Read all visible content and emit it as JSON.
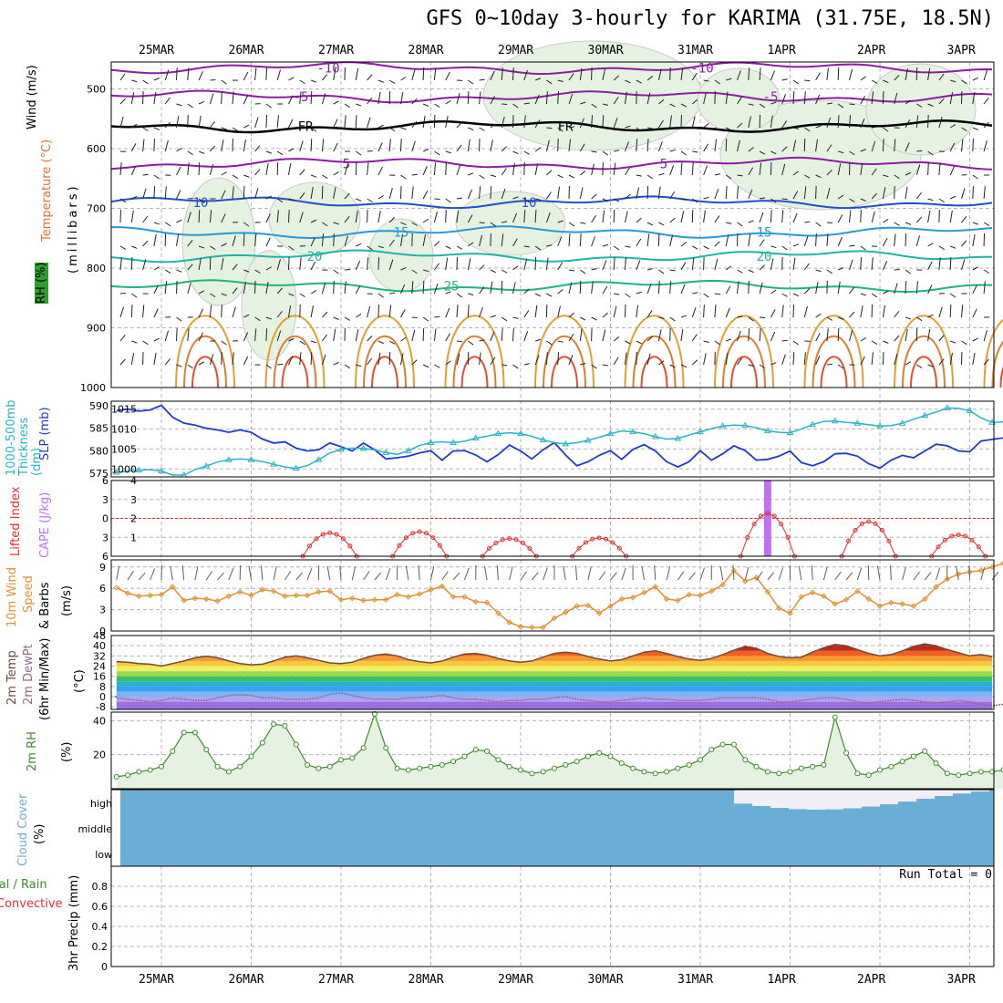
{
  "title": "GFS 0~10day 3-hourly for KARIMA (31.75E, 18.5N)",
  "dates": [
    "25MAR",
    "26MAR",
    "27MAR",
    "28MAR",
    "29MAR",
    "30MAR",
    "31MAR",
    "1APR",
    "2APR",
    "3APR"
  ],
  "run_total": "Run Total = 0",
  "panel_labels": {
    "upper": {
      "wind": "Wind (m/s)",
      "temp": "Temperature (°C)",
      "rh": "RH (%)",
      "units": "(millibars)"
    },
    "slp": {
      "thick": "1000-500mb Thickness (dm)",
      "slp": "SLP (mb)"
    },
    "cape": {
      "li": "Lifted Index",
      "cape": "CAPE (J/kg)"
    },
    "wind10": {
      "a": "10m Wind",
      "b": "Speed",
      "c": "& Barbs",
      "units": "(m/s)"
    },
    "temp2m": {
      "a": "2m Temp",
      "b": "2m DewPt",
      "c": "(6hr Min/Max)",
      "units": "(°C)"
    },
    "rh2m": {
      "a": "2m RH",
      "units": "(%)"
    },
    "cloud": {
      "a": "Cloud Cover",
      "units": "(%)"
    },
    "precip": {
      "a": "Total / Rain",
      "b": "Convective",
      "c": "3hr Precip (mm)"
    }
  },
  "colors": {
    "grid": "#b4b4b4",
    "slp": "#1e3cc8",
    "thickness": "#28b4c8",
    "lifted_index": "#e03030",
    "cape": "#c070f0",
    "wind_speed": "#e09030",
    "temp": "#6e4a40",
    "dewpt": "#9a6a8a",
    "rh": "#3c8c28",
    "cloud": "#6aaed6",
    "rh_fill": "#e6f2e1"
  },
  "chart_data": [
    {
      "type": "contour",
      "panel": "upper-air",
      "ylabel": "millibars",
      "y_ticks": [
        500,
        600,
        700,
        800,
        900,
        1000
      ],
      "ylim": [
        1000,
        455
      ],
      "temperature_isotherms": [
        {
          "label": "-10",
          "level": 465
        },
        {
          "label": "-5",
          "level": 513
        },
        {
          "label": "FR",
          "level": 563
        },
        {
          "label": "5",
          "level": 625
        },
        {
          "label": "10",
          "level": 690
        },
        {
          "label": "15",
          "level": 740
        },
        {
          "label": "20",
          "level": 780
        },
        {
          "label": "25",
          "level": 830
        }
      ],
      "rh_contours": [
        "10",
        "30"
      ]
    },
    {
      "type": "line",
      "panel": "slp-thickness",
      "series": [
        {
          "name": "SLP (mb)",
          "axis": "right",
          "ylim": [
            998,
            1017
          ],
          "values": [
            1014.6,
            1015,
            1014.5,
            1014.8,
            1016,
            1013,
            1011.5,
            1011,
            1010.2,
            1009.8,
            1009.2,
            1009.8,
            1009.2,
            1007.5,
            1006.5,
            1006.8,
            1005.2,
            1004.5,
            1004.8,
            1006.5,
            1005.6,
            1004.5,
            1006.5,
            1004.8,
            1002.5,
            1002.8,
            1003.2,
            1004,
            1004.6,
            1002.2,
            1004.5,
            1004.6,
            1003.5,
            1001.8,
            1003.6,
            1006,
            1004.5,
            1002.5,
            1004.8,
            1006.6,
            1003.5,
            1000.8,
            1001.8,
            1003.4,
            1004.6,
            1002.4,
            1004.9,
            1006.1,
            1004.5,
            1001.8,
            1000.5,
            1001.8,
            1004.6,
            1002.2,
            1003.8,
            1005.8,
            1004.6,
            1002.2,
            1002.4,
            1003.2,
            1004.5,
            1001.6,
            1000.8,
            1001.8,
            1003.8,
            1003.9,
            1003.2,
            1001.3,
            1000.2,
            1002.2,
            1003.4,
            1002.8,
            1004.5,
            1006.2,
            1005.8,
            1004.5,
            1004.3,
            1007,
            1007.4,
            1007.8,
            1009
          ]
        },
        {
          "name": "1000-500mb Thickness (dm)",
          "axis": "left",
          "ylim": [
            574.2,
            591
          ],
          "values": [
            575.2,
            575.5,
            575.7,
            575.8,
            575.5,
            574.6,
            574.6,
            575.8,
            576.6,
            577.5,
            578,
            578.2,
            578,
            577.6,
            577,
            576.4,
            576.1,
            576.7,
            578,
            579.5,
            580.3,
            580.6,
            580.5,
            580.2,
            579.6,
            579.2,
            580,
            581.2,
            581.8,
            582,
            581.8,
            582.1,
            582.8,
            583.2,
            583.8,
            584,
            583.8,
            583.2,
            582.4,
            581.8,
            581.5,
            581.8,
            582.3,
            583,
            583.8,
            584.4,
            584.2,
            583.8,
            583.1,
            582.6,
            582.7,
            583.5,
            584.2,
            584.9,
            585.5,
            585.7,
            585.6,
            585.1,
            584.4,
            584.1,
            584,
            584.8,
            585.8,
            586.5,
            586.6,
            586.3,
            586.1,
            585.8,
            585.5,
            585.6,
            586.1,
            587,
            587.8,
            588.6,
            589.5,
            589.4,
            588.9,
            587.3,
            586.3,
            586.4,
            586.7
          ]
        }
      ]
    },
    {
      "type": "bar+line",
      "panel": "cape-lifted-index",
      "series": [
        {
          "name": "Lifted Index",
          "axis": "left",
          "ylim": [
            -6,
            6
          ],
          "y_ticks": [
            -6,
            -3,
            0,
            3,
            6
          ]
        },
        {
          "name": "CAPE (J/kg)",
          "axis": "right",
          "ylim": [
            0,
            4
          ],
          "y_ticks": [
            1,
            2,
            3,
            4
          ],
          "bars": [
            {
              "x_step": 54,
              "value": 4
            }
          ]
        }
      ],
      "lifted_index_bumps": [
        {
          "center_step": 15,
          "peak": 2.3
        },
        {
          "center_step": 23,
          "peak": 2.1
        },
        {
          "center_step": 31,
          "peak": 3.2
        },
        {
          "center_step": 39,
          "peak": 3.1
        },
        {
          "center_step": 54,
          "peak": -0.8
        },
        {
          "center_step": 63,
          "peak": 0.5
        },
        {
          "center_step": 71,
          "peak": 2.6
        }
      ]
    },
    {
      "type": "line",
      "panel": "10m-wind",
      "ylabel": "(m/s)",
      "ylim": [
        0,
        10
      ],
      "y_ticks": [
        0,
        3,
        6,
        9
      ],
      "series": [
        {
          "name": "10m Wind Speed",
          "values": [
            6.1,
            5.3,
            4.9,
            5.0,
            5.1,
            6.2,
            4.3,
            4.6,
            4.5,
            4.2,
            4.9,
            5.5,
            5.0,
            5.8,
            5.6,
            4.9,
            5.0,
            5.0,
            5.5,
            5.6,
            4.4,
            4.6,
            4.3,
            4.4,
            4.4,
            5.1,
            4.8,
            5.2,
            5.8,
            6.3,
            4.8,
            4.8,
            4.1,
            4.0,
            2.5,
            1.2,
            0.6,
            0.5,
            0.5,
            1.8,
            2.6,
            3.5,
            3.6,
            2.5,
            3.5,
            4.5,
            4.7,
            5.4,
            6.2,
            4.5,
            4.3,
            5.1,
            5.0,
            5.6,
            6.5,
            8.5,
            7.0,
            7.5,
            5.5,
            3.2,
            2.5,
            4.8,
            5.4,
            4.9,
            3.8,
            4.4,
            5.6,
            4.5,
            3.5,
            4.0,
            3.8,
            3.5,
            4.5,
            6.2,
            7.3,
            8.0,
            8.3,
            8.5,
            9.0,
            9.5,
            9.2,
            8.5,
            8.0,
            9.1,
            8.7
          ]
        }
      ]
    },
    {
      "type": "area",
      "panel": "2m-temp",
      "ylabel": "(°C)",
      "ylim": [
        -10,
        48
      ],
      "y_ticks": [
        -8,
        0,
        8,
        16,
        24,
        32,
        40,
        48
      ],
      "series": [
        {
          "name": "2m Temp",
          "values": [
            27.5,
            27,
            26,
            25.5,
            24,
            26,
            28,
            30.5,
            31.8,
            30.5,
            28,
            26,
            25,
            25.5,
            28,
            31,
            32,
            30.5,
            28.5,
            26.5,
            26,
            27,
            30,
            32.5,
            33.5,
            32,
            29,
            27.5,
            26.5,
            28,
            31,
            33.5,
            34,
            32.5,
            30,
            28,
            27,
            28,
            31,
            34,
            35,
            34,
            31.5,
            29.5,
            28,
            29,
            32,
            35,
            36,
            34,
            31.5,
            29.5,
            28.5,
            30,
            33,
            36.5,
            39.5,
            38,
            34,
            31.5,
            30.5,
            31,
            35,
            38.5,
            41,
            40,
            37,
            34,
            32,
            33,
            36,
            39.5,
            41.5,
            40,
            37,
            34.5,
            32,
            33,
            31.5
          ]
        },
        {
          "name": "2m DewPt",
          "values": [
            -1,
            -2,
            -3,
            -4,
            -3,
            -1,
            -2,
            -3,
            -3,
            -1,
            1,
            1.5,
            1,
            -1,
            -1,
            -2,
            -2,
            -2,
            -1,
            2,
            3,
            1,
            -1,
            -2,
            -2,
            -2,
            -1,
            -1,
            0,
            1,
            -1,
            -2,
            -2,
            -3,
            -4,
            -3,
            -3,
            -2,
            -2,
            -1,
            0,
            -2,
            -3,
            -4,
            -4,
            -3,
            -2,
            -1,
            -2,
            -2,
            -3,
            -3,
            -3,
            -2,
            -1,
            -1,
            -1,
            -1,
            -2,
            -4,
            -4,
            -3,
            -2,
            -1,
            -1,
            -2,
            -4,
            -5,
            -4,
            -3,
            -2,
            -3,
            -4,
            -5,
            -4,
            -3,
            -4,
            -6,
            -7,
            -6,
            -8
          ]
        }
      ]
    },
    {
      "type": "area",
      "panel": "2m-rh",
      "ylabel": "(%)",
      "ylim": [
        0,
        45
      ],
      "y_ticks": [
        20,
        40
      ],
      "series": [
        {
          "name": "2m RH",
          "values": [
            7,
            8,
            10,
            11,
            13,
            22,
            33,
            33,
            23,
            13,
            10,
            13,
            19,
            27,
            38,
            37,
            26,
            14,
            12,
            13,
            17,
            18,
            24,
            44,
            24,
            12,
            11,
            12,
            13,
            14,
            16,
            19,
            23,
            22,
            17,
            13,
            11,
            9,
            10,
            12,
            14,
            16,
            19,
            21,
            19,
            15,
            12,
            10,
            9,
            10,
            12,
            14,
            17,
            23,
            26,
            26,
            17,
            13,
            10,
            9,
            10,
            12,
            13,
            14,
            42,
            21,
            9,
            8,
            11,
            13,
            16,
            19,
            22,
            15,
            9,
            8,
            9,
            10,
            10,
            11,
            13,
            13,
            12,
            11,
            10,
            9,
            10,
            11,
            13,
            14,
            14,
            13,
            11
          ]
        }
      ]
    },
    {
      "type": "heatmap",
      "panel": "cloud-cover",
      "rows": [
        "high",
        "middle",
        "low"
      ],
      "note_cloud_free_high_steps": [
        {
          "from_step": 56,
          "to_step": 81
        }
      ]
    },
    {
      "type": "bar",
      "panel": "3hr-precip",
      "ylabel": "3hr Precip (mm)",
      "ylim": [
        0,
        1
      ],
      "y_ticks": [
        0,
        0.2,
        0.4,
        0.6,
        0.8
      ],
      "series": [
        {
          "name": "Total / Rain",
          "values": []
        },
        {
          "name": "Convective",
          "values": []
        }
      ]
    }
  ]
}
